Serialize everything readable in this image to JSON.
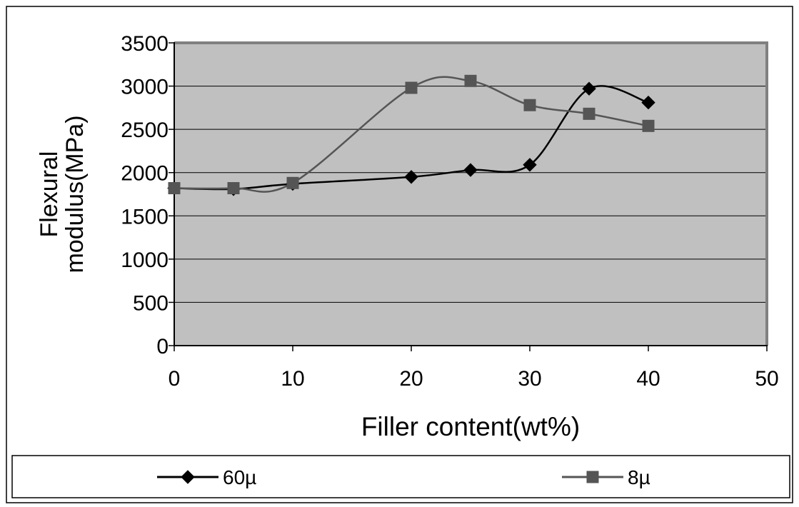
{
  "chart_data": {
    "type": "line",
    "title": "",
    "xlabel": "Filler content(wt%)",
    "ylabel_lines": [
      "Flexural",
      "modulus(MPa)"
    ],
    "xlim": [
      0,
      50
    ],
    "ylim": [
      0,
      3500
    ],
    "xticks": [
      "0",
      "10",
      "20",
      "30",
      "40",
      "50"
    ],
    "yticks": [
      "0",
      "500",
      "1000",
      "1500",
      "2000",
      "2500",
      "3000",
      "3500"
    ],
    "grid": "horizontal",
    "legend_position": "bottom",
    "plot_background": "#c0c0c0",
    "series": [
      {
        "name": "60µ",
        "marker": "diamond",
        "color": "#000000",
        "x": [
          0,
          5,
          10,
          20,
          25,
          30,
          35,
          40
        ],
        "y": [
          1820,
          1810,
          1870,
          1950,
          2030,
          2090,
          2970,
          2810
        ]
      },
      {
        "name": "8µ",
        "marker": "square",
        "color": "#555555",
        "x": [
          0,
          5,
          10,
          20,
          25,
          30,
          35,
          40
        ],
        "y": [
          1820,
          1820,
          1880,
          2980,
          3060,
          2780,
          2680,
          2540
        ]
      }
    ]
  }
}
